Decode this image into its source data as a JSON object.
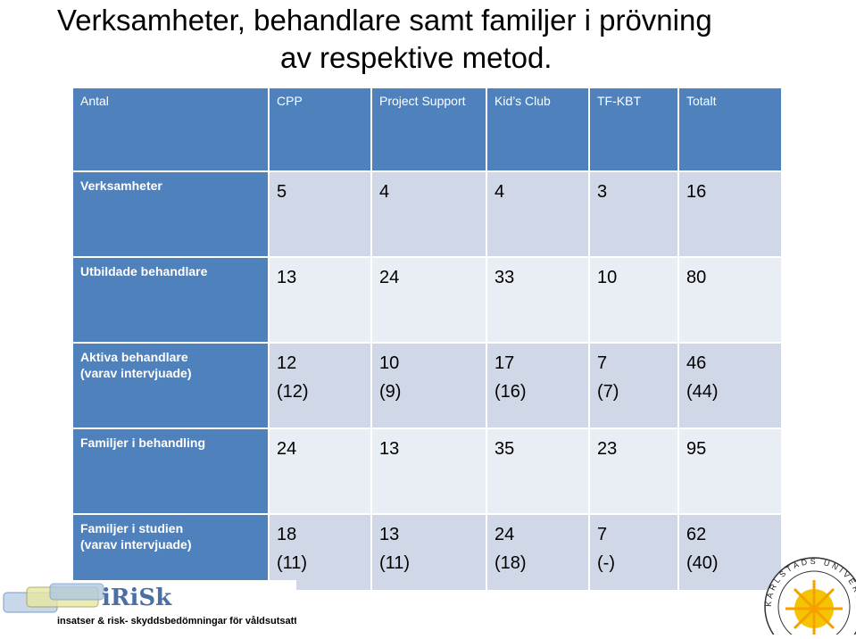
{
  "title": {
    "lines": [
      "Verksamheter,  behandlare samt familjer i prövning",
      "av respektive metod."
    ]
  },
  "table": {
    "header": [
      "Antal",
      "CPP",
      "Project Support",
      "Kid’s Club",
      "TF-KBT",
      "Totalt"
    ],
    "rows": [
      [
        [
          "Verksamheter"
        ],
        [
          "5"
        ],
        [
          "4"
        ],
        [
          "4"
        ],
        [
          "3"
        ],
        [
          "16"
        ]
      ],
      [
        [
          "Utbildade behandlare"
        ],
        [
          "13"
        ],
        [
          "24"
        ],
        [
          "33"
        ],
        [
          "10"
        ],
        [
          "80"
        ]
      ],
      [
        [
          "Aktiva behandlare",
          "(varav intervjuade)"
        ],
        [
          "12",
          "(12)"
        ],
        [
          "10",
          "(9)"
        ],
        [
          "17",
          "(16)"
        ],
        [
          "7",
          "(7)"
        ],
        [
          "46",
          "(44)"
        ]
      ],
      [
        [
          "Familjer i behandling"
        ],
        [
          "24"
        ],
        [
          "13"
        ],
        [
          "35"
        ],
        [
          "23"
        ],
        [
          "95"
        ]
      ],
      [
        [
          "Familjer i studien",
          "(varav intervjuade)"
        ],
        [
          "18",
          "(11)"
        ],
        [
          "13",
          "(11)"
        ],
        [
          "24",
          "(18)"
        ],
        [
          "7",
          "(-)"
        ],
        [
          "62",
          "(40)"
        ]
      ]
    ]
  },
  "logo": {
    "name": "iRiSk",
    "tagline": "insatser & risk- skyddsbedömningar för våldsutsatta barn"
  },
  "university": {
    "name": "KARLSTADS UNIVERSITET"
  }
}
